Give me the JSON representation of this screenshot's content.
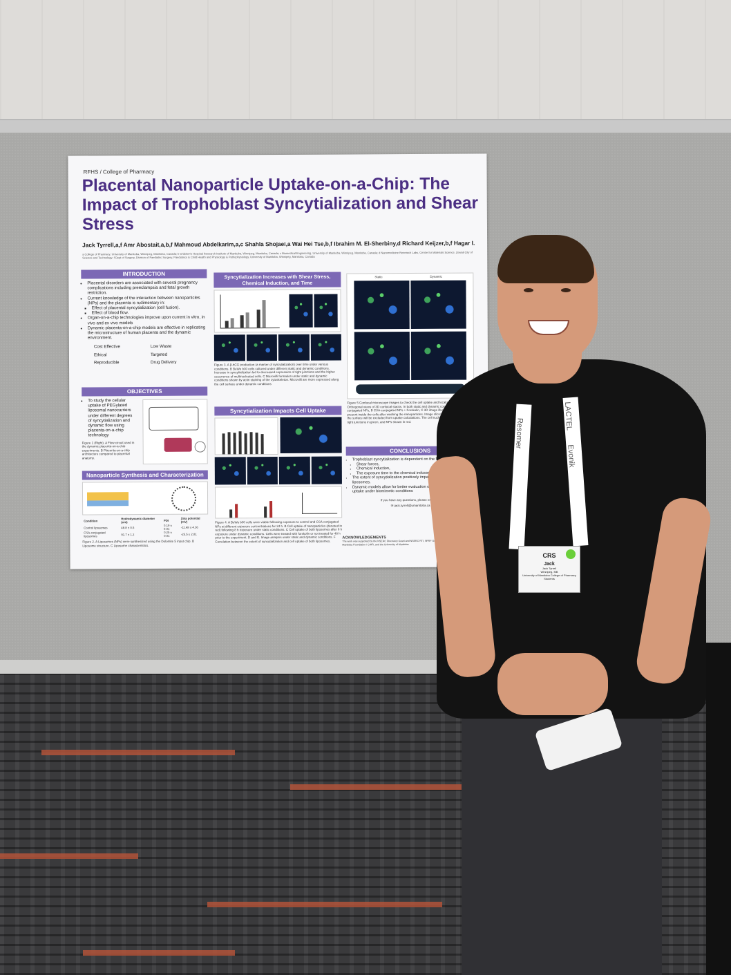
{
  "poster": {
    "brand": "RFHS / College of Pharmacy",
    "title": "Placental Nanoparticle Uptake-on-a-Chip: The Impact of Trophoblast Syncytialization and Shear Stress",
    "authors": "Jack Tyrrell,a,f Amr Abostait,a,b,f Mahmoud Abdelkarim,a,c Shahla Shojaei,a Wai Hei Tse,b,f Ibrahim M. El-Sherbiny,d Richard Keijzer,b,f Hagar I. Labouta a,b,e",
    "affiliations": "a College of Pharmacy, University of Manitoba, Winnipeg, Manitoba, Canada; b Children's Hospital Research Institute of Manitoba, Winnipeg, Manitoba, Canada; c Biomedical Engineering, University of Manitoba, Winnipeg, Manitoba, Canada; d Nanomedicine Research Labs, Centre for Materials Science, Zewail City of Science and Technology; f Dept of Surgery, Division of Paediatric Surgery, Paediatrics & Child Health and Physiology & Pathophysiology, University of Manitoba, Winnipeg, Manitoba, Canada",
    "introduction": {
      "heading": "INTRODUCTION",
      "bullets": [
        "Placental disorders are associated with several pregnancy complications including preeclampsia and fetal growth restriction.",
        "Current knowledge of the interaction between nanoparticles (NPs) and the placenta is rudimentary in:",
        "Effect of placental syncytialization (cell fusion).",
        "Effect of blood flow.",
        "Organ-on-a-chip technologies improve upon current in vitro, in vivo and ex vivo models",
        "Dynamic placenta-on-a-chip models are effective in replicating the microstructure of human placenta and the dynamic environment."
      ],
      "features": [
        "Cost Effective",
        "Low Waste",
        "Ethical",
        "Targeted",
        "Reproducible",
        "Drug Delivery"
      ]
    },
    "objectives": {
      "heading": "OBJECTIVES",
      "text": "To study the cellular uptake of PEGylated liposomal nanocarriers under different degrees of syncytialization and dynamic flow using placenta-on-a-chip technology",
      "caption": "Figure 1 (Right). A Flow circuit used in the dynamic placenta-on-a-chip experiments. B Placenta-on-a-chip architecture compared to placental anatomy."
    },
    "synthesis": {
      "heading": "Nanoparticle Synthesis and Characterization",
      "table_headers": [
        "Condition",
        "Hydrodynamic diameter (nm)",
        "PDI",
        "Zeta potential (mV)"
      ],
      "rows": [
        [
          "Control liposomes",
          "48.8 ± 0.5",
          "0.19 ± 0.01",
          "-11.48 ± 4.36"
        ],
        [
          "CSA-conjugated liposomes",
          "91.7 ± 1.2",
          "0.25 ± 0.01",
          "-25.5 ± 2.81"
        ]
      ],
      "caption": "Figure 2. A Liposomes (NPs) were synthesized using the Dolomite 5 input chip. B Liposome structure. C Liposome characteristics."
    },
    "syncytialization_shear": {
      "heading": "Syncytialization Increases with Shear Stress, Chemical Induction, and Time",
      "caption": "Figure 3. A β-hCG production (a marker of syncytialization) over time under various conditions. B BeWo b30 cells cultured under different static and dynamic conditions. Increase in syncytialization led to decreased expression of tight junctions and the higher occurrence of multinucleated cells. C Microvilli formation under static and dynamic conditions shown by actin staining of the cytoskeleton. Microvilli are more expressed along the cell surface under dynamic conditions"
    },
    "uptake": {
      "heading": "Syncytialization Impacts Cell Uptake",
      "caption": "Figure 4. A BeWo b30 cells were viable following exposure to control and CSA-conjugated NPs at different exposure concentrations for 24 h. B Cell uptake of nanoparticles (denoted in red) following 8 h exposure under static conditions. C Cell uptake of both liposomes after 8 h exposure under dynamic conditions. Cells were treated with forskolin or not treated for 48 h prior to the experiment. D and E. Image analysis under static and dynamic conditions. F Correlation between the extent of syncytialization and cell uptake of both liposomes."
    },
    "confocal": {
      "labels": [
        "Static",
        "Dynamic"
      ],
      "caption": "Figure 5 Confocal microscope images to check the cell uptake and localization of the NPs. Orthogonal views of 3D confocal stacks. In both static and dynamic conditions. A CSA-conjugated NPs, B CSA-conjugated NPs + Forskolin, C 3D image illustrates the NP's present inside the cells after washing the nanoparticles. Image slices show NPs present on the surface will be excluded from uptake calculations. The cell nuclei are labelled in blue, tight junctions in green, and NPs shown in red."
    },
    "conclusions": {
      "heading": "CONCLUSIONS",
      "bullets": [
        "Trophoblast syncytialization is dependent on the following factors:",
        "Shear forces,",
        "Chemical induction,",
        "The exposure time to the chemical inducer.",
        "The extent of syncytialization positively impacts the cellular uptake of liposomes.",
        "Dynamic models allow for better evaluation of interaction and cellular uptake under biomimetic conditions"
      ],
      "contact": "If you have any questions, please email me",
      "email": "jack.tyrrell@umanitoba.ca"
    },
    "acknowledgements": {
      "heading": "ACKNOWLEDGEMENTS",
      "text": "The work was supported by the NSERC Discovery Grant and NSERC RTI, NFRF Grant, Research Manitoba Foundation / CIHR, and the University of Manitoba"
    },
    "logo": "UM"
  },
  "badge": {
    "event": "CRS",
    "first_name": "Jack",
    "full_name": "Jack Tyrrell",
    "location": "Winnipeg, MB",
    "org": "University of Manitoba College of Pharmacy",
    "role": "Students"
  },
  "lanyard_text": [
    "Resomer",
    "Evonik",
    "LACTEL"
  ],
  "colors": {
    "poster_accent": "#7c68b5",
    "title": "#4b2e83",
    "shirt": "#131313",
    "carpet_stripe": "#b2533a"
  }
}
